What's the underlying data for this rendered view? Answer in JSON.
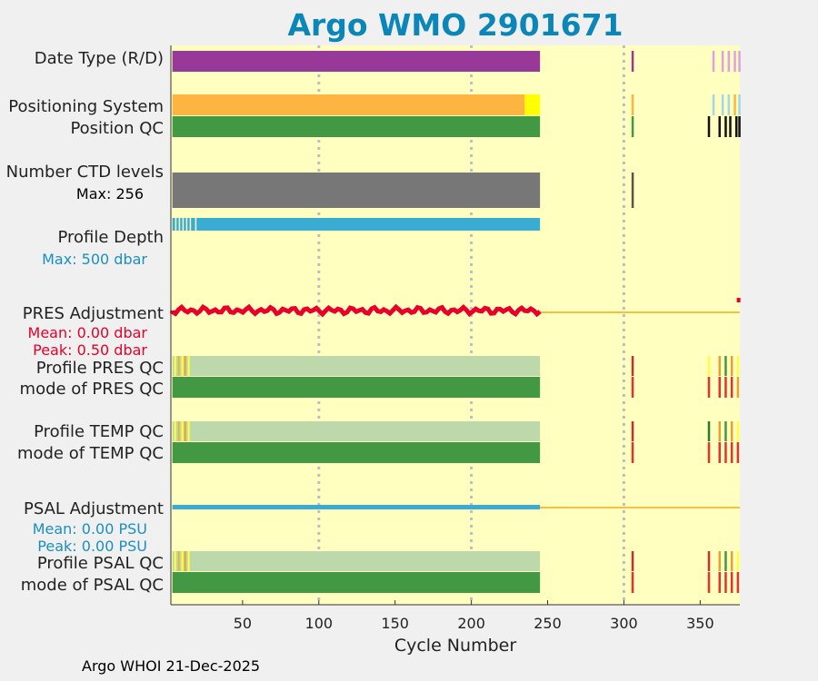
{
  "title": "Argo WMO 2901671",
  "footer": "Argo WHOI 21-Dec-2025",
  "colors": {
    "background": "#ffffc0",
    "title": "#0a86b9",
    "date_type": "#983898",
    "positioning": "#fdb541",
    "positioning_alt": "#ffff00",
    "qc_good": "#439843",
    "qc_good_light": "#bdd9ab",
    "ctd_levels": "#777777",
    "profile_depth": "#3aabd1",
    "pres_adjust": "#e8002a",
    "psal_adjust": "#3aabd1",
    "zero_line": "#f4c040",
    "grid": "#bbbbcc"
  },
  "chart_data": {
    "type": "bar",
    "xlabel": "Cycle Number",
    "xlim": [
      3,
      376
    ],
    "xticks": [
      50,
      100,
      150,
      200,
      250,
      300,
      350
    ],
    "vertical_grid_cycles": [
      100,
      200,
      300
    ],
    "rows": [
      {
        "key": "date_type",
        "label": "Date Type (R/D)",
        "start": 4,
        "end": 245,
        "color_key": "date_type"
      },
      {
        "key": "positioning",
        "label": "Positioning System",
        "start": 4,
        "end": 245,
        "color_key": "positioning",
        "alt_start": 235,
        "alt_color_key": "positioning_alt"
      },
      {
        "key": "position_qc",
        "label": "Position QC",
        "start": 4,
        "end": 245,
        "color_key": "qc_good"
      },
      {
        "key": "ctd_levels",
        "label": "Number CTD levels",
        "start": 4,
        "end": 245,
        "color_key": "ctd_levels",
        "max_label": "Max: 256"
      },
      {
        "key": "profile_depth",
        "label": "Profile Depth",
        "start": 4,
        "end": 245,
        "color_key": "profile_depth",
        "max_label": "Max:  500 dbar"
      },
      {
        "key": "pres_adjust",
        "label": "PRES Adjustment",
        "start": 4,
        "end": 245,
        "color_key": "pres_adjust",
        "mean_label": "Mean: 0.00 dbar",
        "peak_label": "Peak: 0.50 dbar"
      },
      {
        "key": "profile_pres_qc",
        "label": "Profile PRES QC",
        "start": 4,
        "end": 245,
        "color_key": "qc_good_light"
      },
      {
        "key": "mode_pres_qc",
        "label": "mode of PRES QC",
        "start": 4,
        "end": 245,
        "color_key": "qc_good"
      },
      {
        "key": "profile_temp_qc",
        "label": "Profile TEMP QC",
        "start": 4,
        "end": 245,
        "color_key": "qc_good_light"
      },
      {
        "key": "mode_temp_qc",
        "label": "mode of TEMP QC",
        "start": 4,
        "end": 245,
        "color_key": "qc_good"
      },
      {
        "key": "psal_adjust",
        "label": "PSAL Adjustment",
        "start": 4,
        "end": 245,
        "color_key": "psal_adjust",
        "mean_label": "Mean: 0.00 PSU",
        "peak_label": "Peak: 0.00 PSU"
      },
      {
        "key": "profile_psal_qc",
        "label": "Profile PSAL QC",
        "start": 4,
        "end": 245,
        "color_key": "qc_good_light"
      },
      {
        "key": "mode_psal_qc",
        "label": "mode of PSAL QC",
        "start": 4,
        "end": 245,
        "color_key": "qc_good"
      }
    ]
  }
}
